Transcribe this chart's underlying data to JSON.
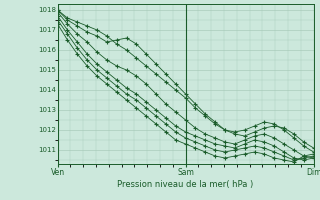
{
  "title": "Pression niveau de la mer( hPa )",
  "bg_color": "#cce8dc",
  "grid_color": "#aaccbb",
  "line_color": "#1a5c2a",
  "marker_color": "#1a5c2a",
  "ylim": [
    1010.3,
    1018.3
  ],
  "yticks": [
    1011,
    1012,
    1013,
    1014,
    1015,
    1016,
    1017,
    1018
  ],
  "xtick_positions": [
    0.0,
    0.5,
    1.0
  ],
  "xtick_labels": [
    "Ven",
    "Sam",
    "Dim"
  ],
  "series": [
    [
      1018.0,
      1017.6,
      1017.4,
      1017.2,
      1017.0,
      1016.7,
      1016.3,
      1016.0,
      1015.6,
      1015.2,
      1014.8,
      1014.4,
      1014.0,
      1013.6,
      1013.1,
      1012.7,
      1012.3,
      1012.0,
      1011.9,
      1012.0,
      1012.2,
      1012.4,
      1012.3,
      1012.0,
      1011.6,
      1011.2,
      1010.9
    ],
    [
      1018.0,
      1017.5,
      1017.2,
      1016.9,
      1016.7,
      1016.4,
      1016.5,
      1016.6,
      1016.3,
      1015.8,
      1015.3,
      1014.8,
      1014.3,
      1013.8,
      1013.3,
      1012.8,
      1012.4,
      1012.0,
      1011.8,
      1011.7,
      1011.9,
      1012.1,
      1012.2,
      1012.1,
      1011.8,
      1011.4,
      1011.1
    ],
    [
      1017.9,
      1017.3,
      1016.8,
      1016.4,
      1015.9,
      1015.5,
      1015.2,
      1015.0,
      1014.7,
      1014.3,
      1013.8,
      1013.3,
      1012.9,
      1012.5,
      1012.1,
      1011.8,
      1011.6,
      1011.4,
      1011.3,
      1011.5,
      1011.7,
      1011.8,
      1011.6,
      1011.3,
      1011.0,
      1010.7,
      1010.6
    ],
    [
      1017.7,
      1017.0,
      1016.4,
      1015.8,
      1015.3,
      1014.9,
      1014.5,
      1014.1,
      1013.8,
      1013.4,
      1013.0,
      1012.6,
      1012.2,
      1011.9,
      1011.7,
      1011.5,
      1011.3,
      1011.2,
      1011.1,
      1011.3,
      1011.5,
      1011.4,
      1011.2,
      1010.9,
      1010.6,
      1010.5,
      1010.6
    ],
    [
      1017.5,
      1016.8,
      1016.1,
      1015.5,
      1015.0,
      1014.6,
      1014.2,
      1013.8,
      1013.5,
      1013.1,
      1012.7,
      1012.3,
      1011.9,
      1011.6,
      1011.4,
      1011.2,
      1011.0,
      1010.9,
      1011.0,
      1011.1,
      1011.2,
      1011.1,
      1010.9,
      1010.7,
      1010.5,
      1010.6,
      1010.7
    ],
    [
      1017.3,
      1016.5,
      1015.8,
      1015.2,
      1014.7,
      1014.3,
      1013.9,
      1013.5,
      1013.1,
      1012.7,
      1012.3,
      1011.9,
      1011.5,
      1011.3,
      1011.1,
      1010.9,
      1010.7,
      1010.6,
      1010.7,
      1010.8,
      1010.9,
      1010.8,
      1010.6,
      1010.5,
      1010.4,
      1010.7,
      1010.8
    ]
  ]
}
